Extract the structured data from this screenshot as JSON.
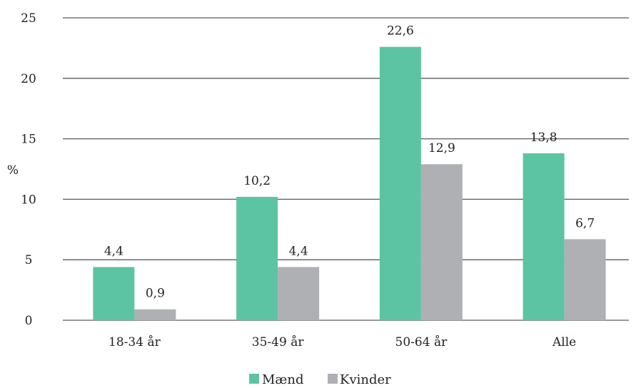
{
  "chart_data": {
    "type": "bar",
    "categories": [
      "18-34 år",
      "35-49 år",
      "50-64 år",
      "Alle"
    ],
    "series": [
      {
        "name": "Mænd",
        "values": [
          4.4,
          10.2,
          22.6,
          13.8
        ],
        "labels": [
          "4,4",
          "10,2",
          "22,6",
          "13,8"
        ],
        "color": "#5cc4a3"
      },
      {
        "name": "Kvinder",
        "values": [
          0.9,
          4.4,
          12.9,
          6.7
        ],
        "labels": [
          "0,9",
          "4,4",
          "12,9",
          "6,7"
        ],
        "color": "#aeb0b3"
      }
    ],
    "ylabel": "%",
    "ylim": [
      0,
      25
    ],
    "yticks": [
      0,
      5,
      10,
      15,
      20,
      25
    ],
    "ytick_labels": [
      "0",
      "5",
      "10",
      "15",
      "20",
      "25"
    ],
    "grid": true,
    "legend": "bottom-center"
  },
  "colors": {
    "gridline": "#5a5a5a",
    "axis": "#5a5a5a"
  }
}
